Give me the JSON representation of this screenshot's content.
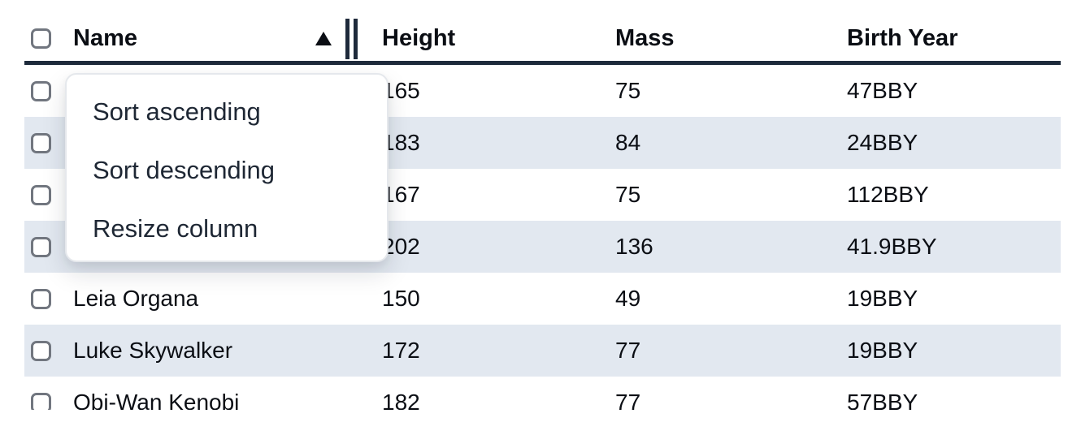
{
  "table": {
    "columns": [
      {
        "label": "Name",
        "sorted": "ascending"
      },
      {
        "label": "Height"
      },
      {
        "label": "Mass"
      },
      {
        "label": "Birth Year"
      }
    ],
    "rows": [
      {
        "name": "",
        "height": "165",
        "mass": "75",
        "birth_year": "47BBY"
      },
      {
        "name": "",
        "height": "183",
        "mass": "84",
        "birth_year": "24BBY"
      },
      {
        "name": "",
        "height": "167",
        "mass": "75",
        "birth_year": "112BBY"
      },
      {
        "name": "",
        "height": "202",
        "mass": "136",
        "birth_year": "41.9BBY"
      },
      {
        "name": "Leia Organa",
        "height": "150",
        "mass": "49",
        "birth_year": "19BBY"
      },
      {
        "name": "Luke Skywalker",
        "height": "172",
        "mass": "77",
        "birth_year": "19BBY"
      },
      {
        "name": "Obi-Wan Kenobi",
        "height": "182",
        "mass": "77",
        "birth_year": "57BBY"
      }
    ]
  },
  "menu": {
    "items": [
      {
        "label": "Sort ascending"
      },
      {
        "label": "Sort descending"
      },
      {
        "label": "Resize column"
      }
    ]
  },
  "icons": {
    "sort_indicator": "sort-ascending-triangle",
    "resize_grip": "double-vertical-bars"
  },
  "colors": {
    "row_stripe": "#e2e8f0",
    "header_border": "#1e2a3b",
    "body_text": "#0b0e14",
    "menu_text": "#1e2734",
    "checkbox_border": "#71767f",
    "menu_border": "#e5e8ec",
    "background": "#ffffff"
  }
}
